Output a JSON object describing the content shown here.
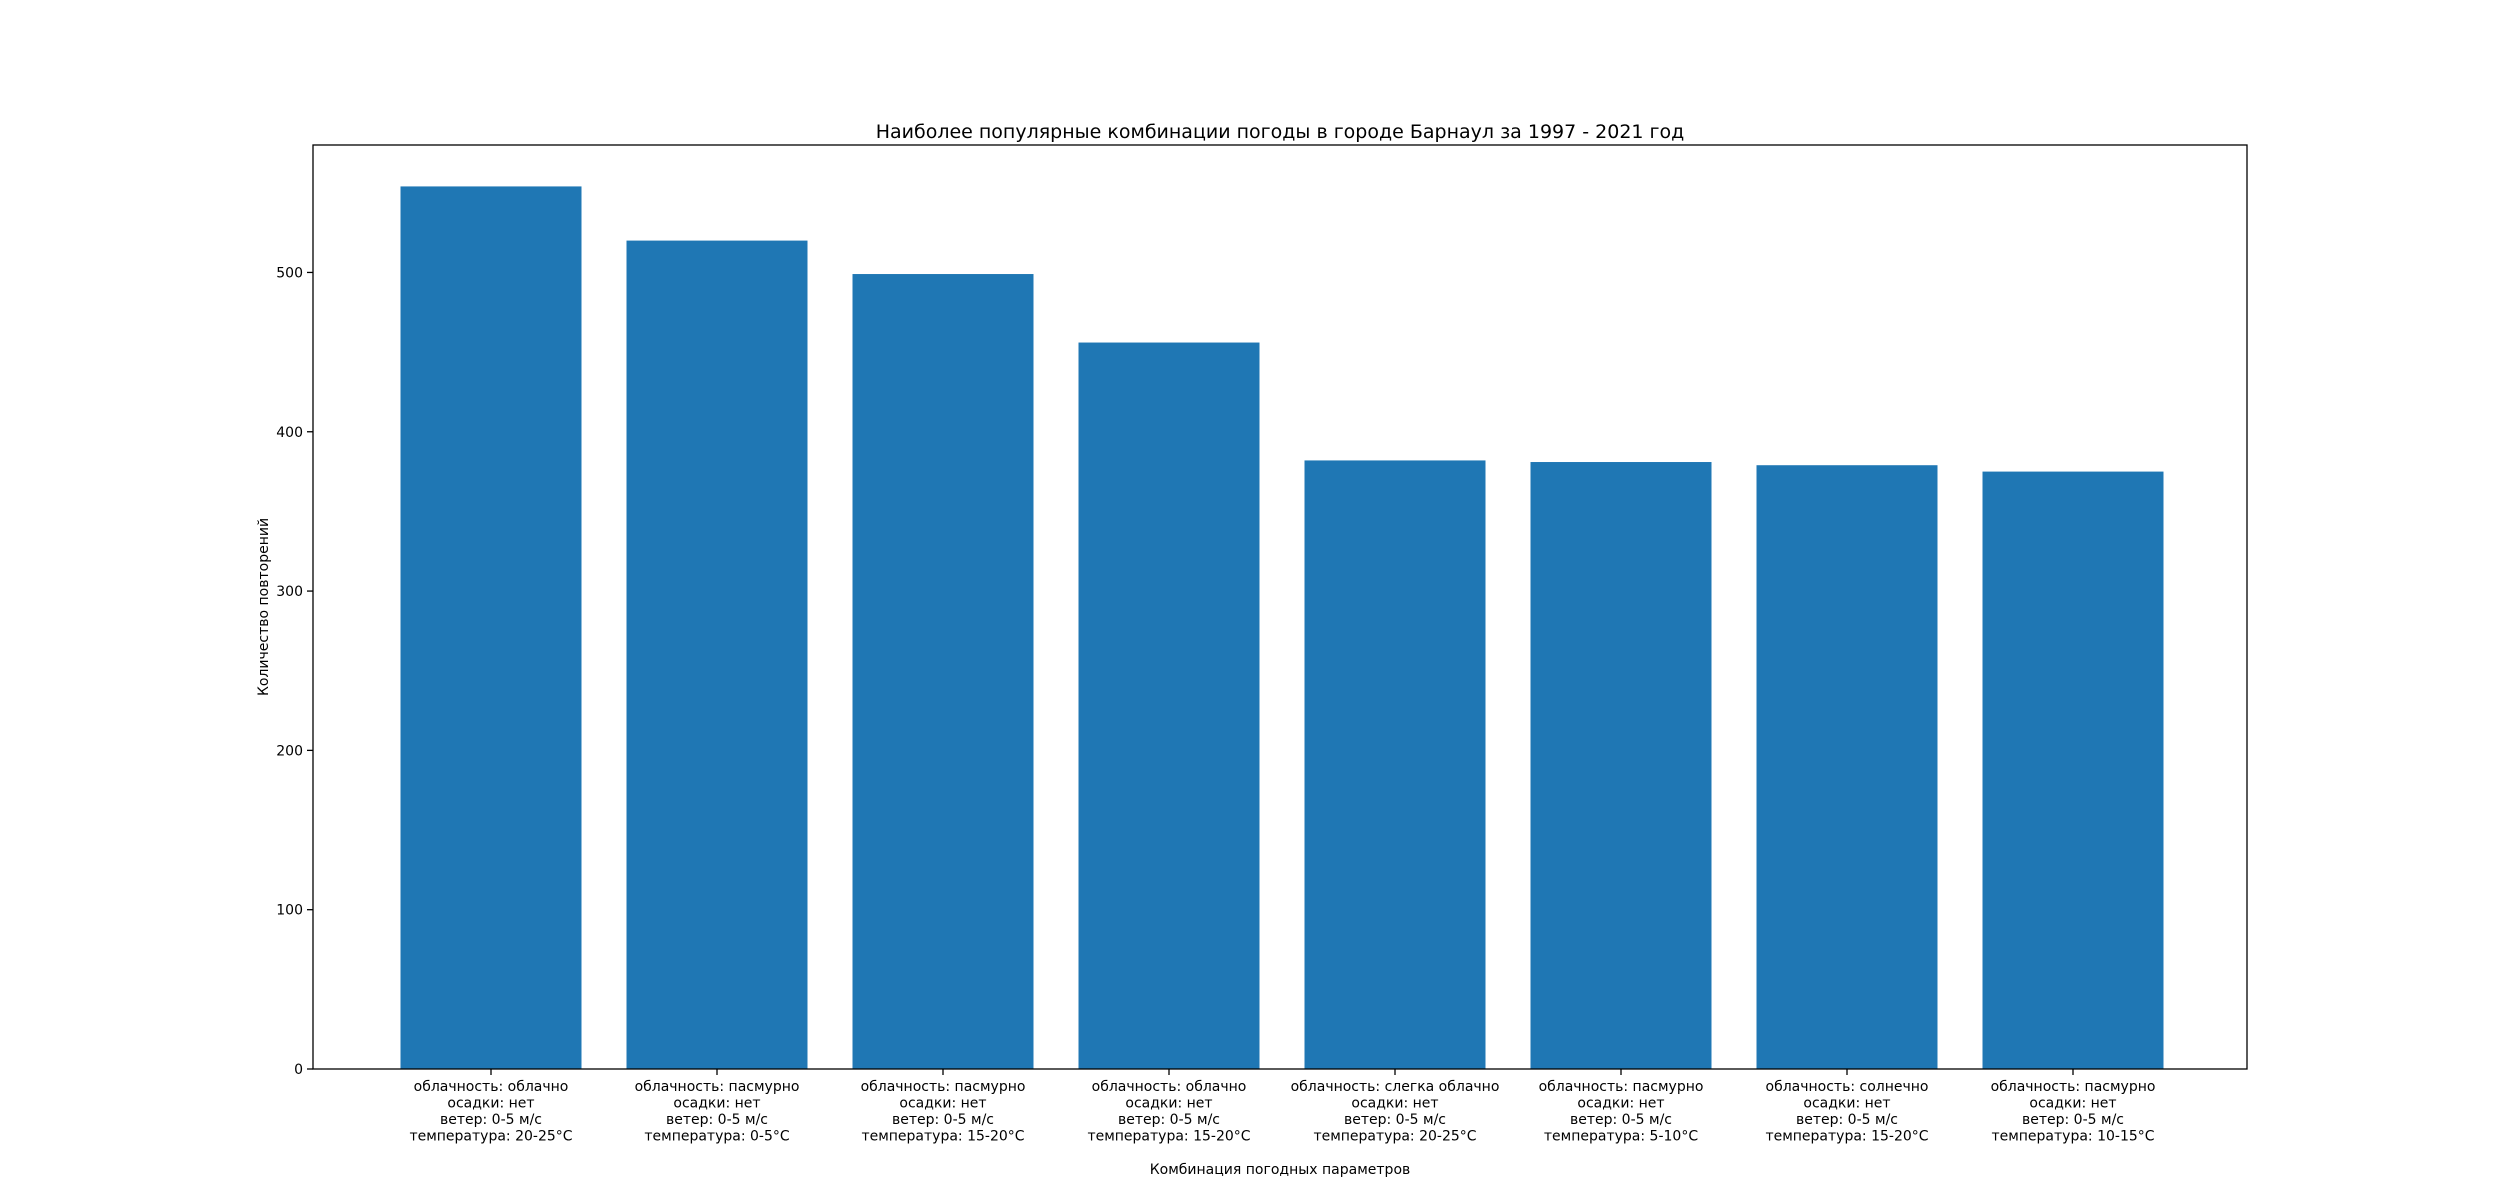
{
  "chart_data": {
    "type": "bar",
    "title": "Наиболее популярные комбинации погоды в городе Барнаул за 1997 - 2021 год",
    "xlabel": "Комбинация погодных параметров",
    "ylabel": "Количество повторений",
    "ylim": [
      0,
      580
    ],
    "yticks": [
      0,
      100,
      200,
      300,
      400,
      500
    ],
    "grid": false,
    "bar_color": "#1f77b4",
    "categories": [
      [
        "облачность: облачно",
        "осадки: нет",
        "ветер: 0-5 м/с",
        "температура: 20-25°C"
      ],
      [
        "облачность: пасмурно",
        "осадки: нет",
        "ветер: 0-5 м/с",
        "температура: 0-5°C"
      ],
      [
        "облачность: пасмурно",
        "осадки: нет",
        "ветер: 0-5 м/с",
        "температура: 15-20°C"
      ],
      [
        "облачность: облачно",
        "осадки: нет",
        "ветер: 0-5 м/с",
        "температура: 15-20°C"
      ],
      [
        "облачность: слегка облачно",
        "осадки: нет",
        "ветер: 0-5 м/с",
        "температура: 20-25°C"
      ],
      [
        "облачность: пасмурно",
        "осадки: нет",
        "ветер: 0-5 м/с",
        "температура: 5-10°C"
      ],
      [
        "облачность: солнечно",
        "осадки: нет",
        "ветер: 0-5 м/с",
        "температура: 15-20°C"
      ],
      [
        "облачность: пасмурно",
        "осадки: нет",
        "ветер: 0-5 м/с",
        "температура: 10-15°C"
      ]
    ],
    "values": [
      554,
      520,
      499,
      456,
      382,
      381,
      379,
      375
    ]
  }
}
